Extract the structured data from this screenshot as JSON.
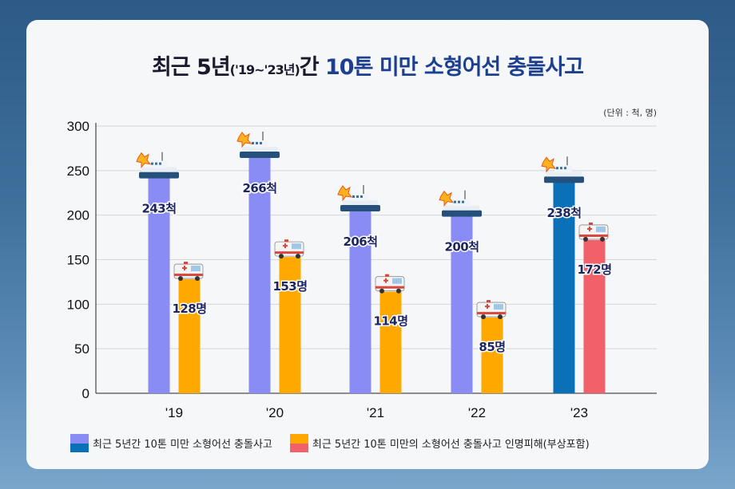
{
  "title": {
    "part1": "최근 5년",
    "paren": "('19~'23년)",
    "part2": "간 ",
    "highlight": "10톤 미만 소형어선 충돌사고"
  },
  "unit": "(단위 : 척, 명)",
  "legend": {
    "vessels_label": "최근 5년간 10톤 미만 소형어선 충돌사고",
    "casualties_label": "최근 5년간 10톤 미만의 소형어선 충돌사고 인명피해(부상포함)"
  },
  "colors": {
    "vessels": "#8a8cf5",
    "vessels_highlight": "#0a70b8",
    "casualties": "#ffa800",
    "casualties_highlight": "#f2606a"
  },
  "chart_data": {
    "type": "bar",
    "title": "최근 5년('19~'23년)간 10톤 미만 소형어선 충돌사고",
    "categories": [
      "'19",
      "'20",
      "'21",
      "'22",
      "'23"
    ],
    "series": [
      {
        "name": "최근 5년간 10톤 미만 소형어선 충돌사고",
        "values": [
          243,
          266,
          206,
          200,
          238
        ],
        "labels": [
          "243척",
          "266척",
          "206척",
          "200척",
          "238척"
        ]
      },
      {
        "name": "최근 5년간 10톤 미만의 소형어선 충돌사고 인명피해(부상포함)",
        "values": [
          128,
          153,
          114,
          85,
          172
        ],
        "labels": [
          "128명",
          "153명",
          "114명",
          "85명",
          "172명"
        ]
      }
    ],
    "yticks": [
      "0",
      "50",
      "100",
      "150",
      "200",
      "250",
      "300"
    ],
    "ylim": [
      0,
      300
    ],
    "grid": true,
    "highlight_category": "'23",
    "xlabel": "",
    "ylabel": ""
  }
}
